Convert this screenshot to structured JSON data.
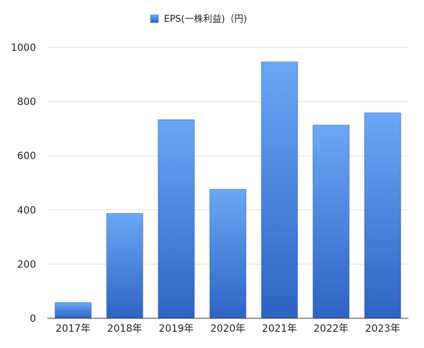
{
  "chart_data": {
    "type": "bar",
    "categories": [
      "2017年",
      "2018年",
      "2019年",
      "2020年",
      "2021年",
      "2022年",
      "2023年"
    ],
    "series": [
      {
        "name": "EPS(一株利益)（円)",
        "values": [
          58,
          387,
          733,
          476,
          946,
          713,
          758
        ],
        "color": "#3a78d8"
      }
    ],
    "ylim": [
      0,
      1000
    ],
    "yticks": [
      0,
      200,
      400,
      600,
      800,
      1000
    ],
    "grid": true,
    "legend": "top-center",
    "colors": {
      "bar_top": "#6aa8f5",
      "bar_bottom": "#2e63c4",
      "bar_stroke": "#2a5bb5",
      "grid": "#e2e2e2",
      "axis": "#333333"
    }
  }
}
